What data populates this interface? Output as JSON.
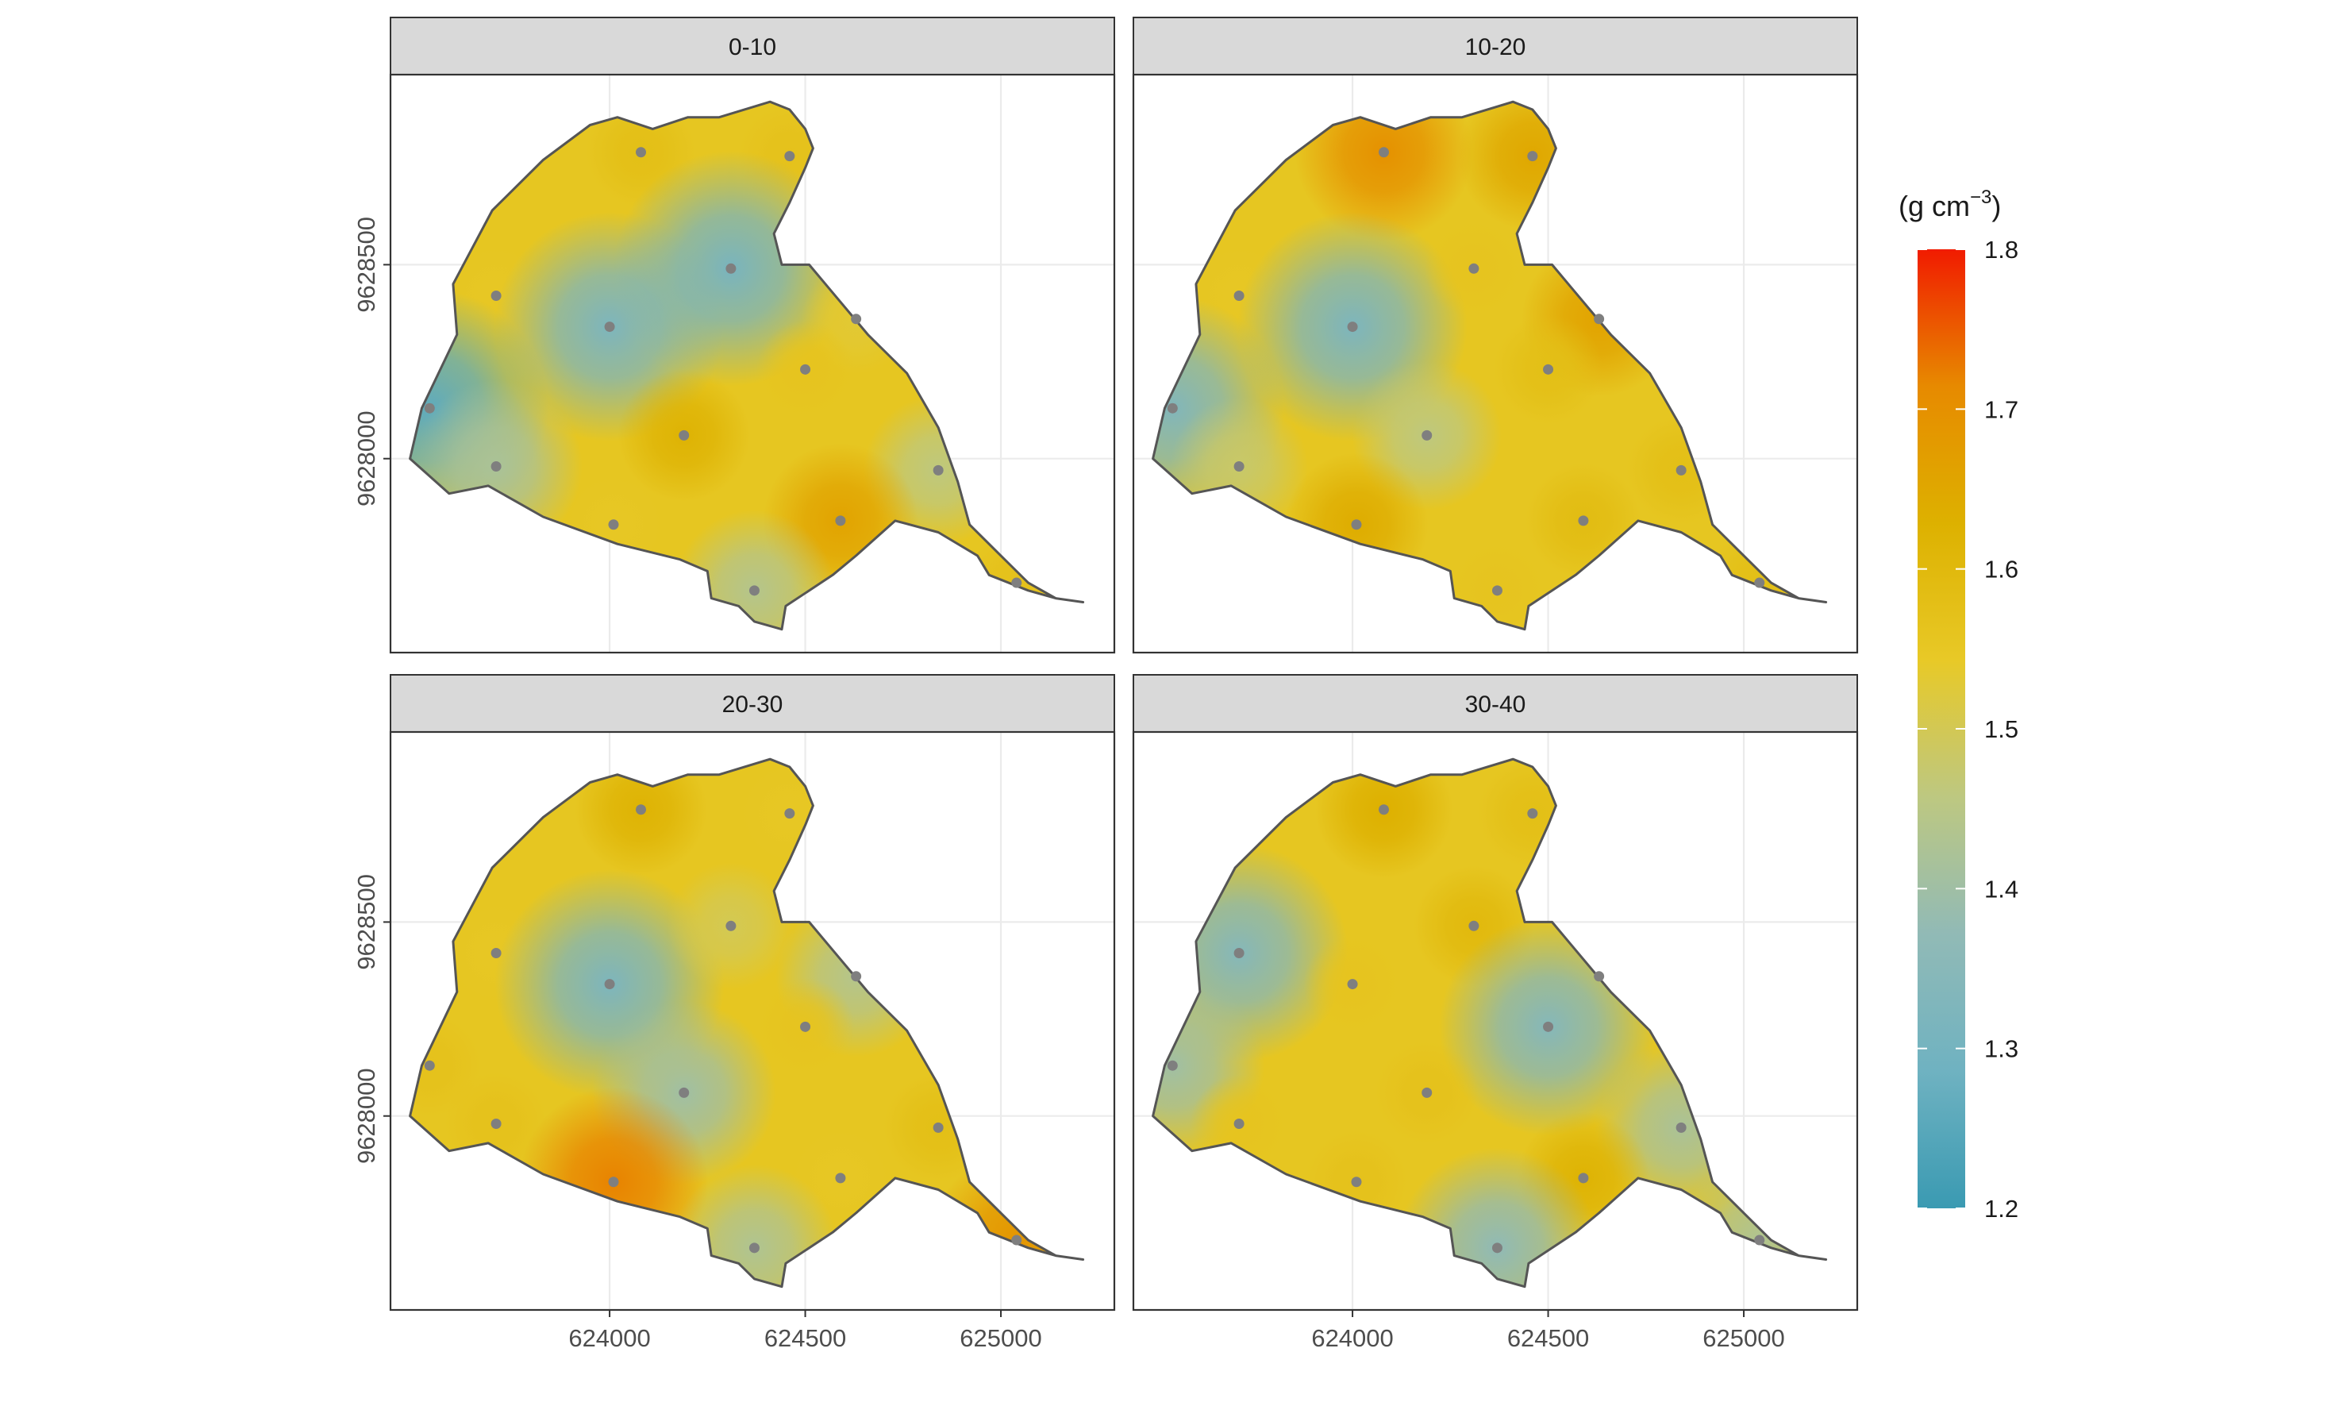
{
  "chart_data": {
    "type": "heatmap",
    "description_of_panels": "faceted interpolated maps",
    "facets": [
      "0-10",
      "10-20",
      "20-30",
      "30-40"
    ],
    "x_ticks": [
      "624000",
      "624500",
      "625000"
    ],
    "x_tick_values": [
      624000,
      624500,
      625000
    ],
    "y_ticks": [
      "9628000",
      "9628500"
    ],
    "y_tick_values": [
      9628000,
      9628500
    ],
    "xlim": [
      623440,
      625290
    ],
    "ylim": [
      9627500,
      9628990
    ],
    "boundary": [
      [
        623600,
        9628450
      ],
      [
        623610,
        9628320
      ],
      [
        623520,
        9628130
      ],
      [
        623490,
        9628000
      ],
      [
        623590,
        9627910
      ],
      [
        623690,
        9627930
      ],
      [
        623830,
        9627850
      ],
      [
        624020,
        9627780
      ],
      [
        624180,
        9627740
      ],
      [
        624250,
        9627710
      ],
      [
        624260,
        9627640
      ],
      [
        624330,
        9627620
      ],
      [
        624370,
        9627580
      ],
      [
        624440,
        9627560
      ],
      [
        624450,
        9627620
      ],
      [
        624570,
        9627700
      ],
      [
        624630,
        9627750
      ],
      [
        624730,
        9627840
      ],
      [
        624840,
        9627810
      ],
      [
        624940,
        9627750
      ],
      [
        624970,
        9627700
      ],
      [
        625070,
        9627660
      ],
      [
        625140,
        9627640
      ],
      [
        625210,
        9627630
      ],
      [
        625140,
        9627640
      ],
      [
        625070,
        9627680
      ],
      [
        625000,
        9627750
      ],
      [
        624920,
        9627830
      ],
      [
        624890,
        9627940
      ],
      [
        624840,
        9628080
      ],
      [
        624760,
        9628220
      ],
      [
        624660,
        9628320
      ],
      [
        624560,
        9628440
      ],
      [
        624510,
        9628500
      ],
      [
        624440,
        9628500
      ],
      [
        624420,
        9628580
      ],
      [
        624460,
        9628660
      ],
      [
        624500,
        9628750
      ],
      [
        624520,
        9628800
      ],
      [
        624500,
        9628850
      ],
      [
        624460,
        9628900
      ],
      [
        624410,
        9628920
      ],
      [
        624280,
        9628880
      ],
      [
        624200,
        9628880
      ],
      [
        624110,
        9628850
      ],
      [
        624020,
        9628880
      ],
      [
        623950,
        9628860
      ],
      [
        623830,
        9628770
      ],
      [
        623700,
        9628640
      ]
    ],
    "color_scale": {
      "title": "(g cm",
      "title_sup": "−3",
      "title_close": ")",
      "min": 1.2,
      "max": 1.8,
      "ticks": [
        "1.2",
        "1.3",
        "1.4",
        "1.5",
        "1.6",
        "1.7",
        "1.8"
      ],
      "tick_values": [
        1.2,
        1.3,
        1.4,
        1.5,
        1.6,
        1.7,
        1.8
      ],
      "colors": [
        "#3a9ab2",
        "#6fb2c1",
        "#91bab6",
        "#bdc881",
        "#e8c927",
        "#ddb100",
        "#e78a00",
        "#f11b00"
      ]
    },
    "sample_points": [
      [
        624080,
        9628790
      ],
      [
        624460,
        9628780
      ],
      [
        623710,
        9628420
      ],
      [
        624000,
        9628340
      ],
      [
        624310,
        9628490
      ],
      [
        624630,
        9628360
      ],
      [
        624500,
        9628230
      ],
      [
        623540,
        9628130
      ],
      [
        624190,
        9628060
      ],
      [
        623710,
        9627980
      ],
      [
        624840,
        9627970
      ],
      [
        624590,
        9627840
      ],
      [
        624010,
        9627830
      ],
      [
        624370,
        9627660
      ],
      [
        625040,
        9627680
      ]
    ],
    "values": {
      "0-10": [
        1.58,
        1.57,
        1.55,
        1.32,
        1.31,
        1.53,
        1.56,
        1.26,
        1.62,
        1.42,
        1.46,
        1.66,
        1.55,
        1.44,
        1.57
      ],
      "10-20": [
        1.7,
        1.65,
        1.55,
        1.32,
        1.56,
        1.66,
        1.58,
        1.33,
        1.46,
        1.48,
        1.58,
        1.59,
        1.64,
        1.56,
        1.58
      ],
      "20-30": [
        1.62,
        1.55,
        1.55,
        1.32,
        1.5,
        1.44,
        1.56,
        1.57,
        1.4,
        1.57,
        1.58,
        1.55,
        1.72,
        1.43,
        1.69
      ],
      "30-40": [
        1.63,
        1.58,
        1.34,
        1.56,
        1.6,
        1.55,
        1.34,
        1.4,
        1.57,
        1.56,
        1.42,
        1.62,
        1.57,
        1.37,
        1.43
      ]
    }
  }
}
